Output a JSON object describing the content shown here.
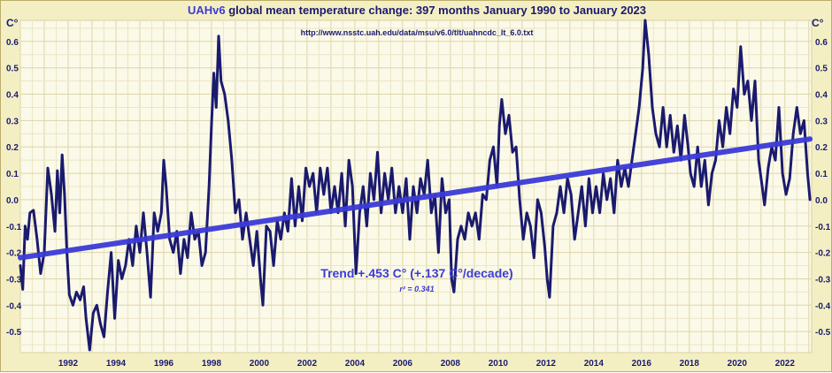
{
  "chart_data": {
    "type": "line",
    "title_prefix": "UAHv6",
    "title_rest": "global mean temperature change: 397 months January 1990 to January 2023",
    "subtitle": "http://www.nsstc.uah.edu/data/msu/v6.0/tlt/uahncdc_lt_6.0.txt",
    "y_unit": "C°",
    "ylim": [
      -0.58,
      0.68
    ],
    "xlim": [
      1990.0,
      2023.12
    ],
    "y_ticks": [
      "-0.5",
      "-0.4",
      "-0.3",
      "-0.2",
      "-0.1",
      "0.0",
      "0.1",
      "0.2",
      "0.3",
      "0.4",
      "0.5",
      "0.6"
    ],
    "x_ticks": [
      "1992",
      "1994",
      "1996",
      "1998",
      "2000",
      "2002",
      "2004",
      "2006",
      "2008",
      "2010",
      "2012",
      "2014",
      "2016",
      "2018",
      "2020",
      "2022"
    ],
    "grid": true,
    "series": [
      {
        "values": [
          [
            1990.0,
            -0.25
          ],
          [
            1990.1,
            -0.34
          ],
          [
            1990.2,
            -0.1
          ],
          [
            1990.3,
            -0.15
          ],
          [
            1990.4,
            -0.05
          ],
          [
            1990.55,
            -0.04
          ],
          [
            1990.7,
            -0.15
          ],
          [
            1990.85,
            -0.28
          ],
          [
            1991.0,
            -0.2
          ],
          [
            1991.15,
            0.12
          ],
          [
            1991.3,
            0.02
          ],
          [
            1991.45,
            -0.12
          ],
          [
            1991.55,
            0.11
          ],
          [
            1991.65,
            -0.05
          ],
          [
            1991.75,
            0.17
          ],
          [
            1991.85,
            0.02
          ],
          [
            1991.95,
            -0.2
          ],
          [
            1992.05,
            -0.36
          ],
          [
            1992.2,
            -0.4
          ],
          [
            1992.35,
            -0.35
          ],
          [
            1992.5,
            -0.38
          ],
          [
            1992.65,
            -0.33
          ],
          [
            1992.75,
            -0.45
          ],
          [
            1992.9,
            -0.57
          ],
          [
            1993.05,
            -0.43
          ],
          [
            1993.2,
            -0.4
          ],
          [
            1993.35,
            -0.47
          ],
          [
            1993.5,
            -0.52
          ],
          [
            1993.65,
            -0.35
          ],
          [
            1993.8,
            -0.2
          ],
          [
            1993.95,
            -0.45
          ],
          [
            1994.1,
            -0.23
          ],
          [
            1994.25,
            -0.3
          ],
          [
            1994.4,
            -0.25
          ],
          [
            1994.55,
            -0.15
          ],
          [
            1994.7,
            -0.25
          ],
          [
            1994.85,
            -0.1
          ],
          [
            1995.0,
            -0.2
          ],
          [
            1995.15,
            -0.05
          ],
          [
            1995.3,
            -0.2
          ],
          [
            1995.45,
            -0.37
          ],
          [
            1995.6,
            -0.05
          ],
          [
            1995.75,
            -0.12
          ],
          [
            1995.9,
            -0.05
          ],
          [
            1996.0,
            0.15
          ],
          [
            1996.1,
            0.05
          ],
          [
            1996.25,
            -0.15
          ],
          [
            1996.4,
            -0.2
          ],
          [
            1996.55,
            -0.12
          ],
          [
            1996.7,
            -0.28
          ],
          [
            1996.85,
            -0.15
          ],
          [
            1997.0,
            -0.22
          ],
          [
            1997.15,
            -0.05
          ],
          [
            1997.3,
            -0.15
          ],
          [
            1997.45,
            -0.12
          ],
          [
            1997.6,
            -0.25
          ],
          [
            1997.75,
            -0.2
          ],
          [
            1997.9,
            0.05
          ],
          [
            1998.0,
            0.28
          ],
          [
            1998.1,
            0.48
          ],
          [
            1998.2,
            0.35
          ],
          [
            1998.3,
            0.62
          ],
          [
            1998.4,
            0.45
          ],
          [
            1998.55,
            0.4
          ],
          [
            1998.7,
            0.3
          ],
          [
            1998.85,
            0.15
          ],
          [
            1999.0,
            -0.05
          ],
          [
            1999.15,
            0.0
          ],
          [
            1999.3,
            -0.15
          ],
          [
            1999.45,
            -0.05
          ],
          [
            1999.6,
            -0.15
          ],
          [
            1999.75,
            -0.25
          ],
          [
            1999.9,
            -0.12
          ],
          [
            2000.05,
            -0.3
          ],
          [
            2000.15,
            -0.4
          ],
          [
            2000.3,
            -0.1
          ],
          [
            2000.45,
            -0.12
          ],
          [
            2000.6,
            -0.25
          ],
          [
            2000.75,
            -0.08
          ],
          [
            2000.9,
            -0.15
          ],
          [
            2001.05,
            -0.05
          ],
          [
            2001.2,
            -0.12
          ],
          [
            2001.35,
            0.08
          ],
          [
            2001.5,
            -0.1
          ],
          [
            2001.65,
            0.05
          ],
          [
            2001.8,
            -0.08
          ],
          [
            2001.95,
            0.12
          ],
          [
            2002.1,
            0.05
          ],
          [
            2002.25,
            0.1
          ],
          [
            2002.4,
            -0.05
          ],
          [
            2002.55,
            0.12
          ],
          [
            2002.7,
            0.02
          ],
          [
            2002.85,
            0.12
          ],
          [
            2003.0,
            -0.05
          ],
          [
            2003.15,
            0.05
          ],
          [
            2003.3,
            -0.05
          ],
          [
            2003.45,
            0.1
          ],
          [
            2003.6,
            -0.1
          ],
          [
            2003.75,
            0.15
          ],
          [
            2003.9,
            0.05
          ],
          [
            2004.05,
            -0.28
          ],
          [
            2004.2,
            -0.05
          ],
          [
            2004.35,
            0.05
          ],
          [
            2004.5,
            -0.1
          ],
          [
            2004.65,
            0.1
          ],
          [
            2004.8,
            0.0
          ],
          [
            2004.95,
            0.18
          ],
          [
            2005.1,
            -0.05
          ],
          [
            2005.25,
            0.1
          ],
          [
            2005.4,
            0.0
          ],
          [
            2005.55,
            0.12
          ],
          [
            2005.7,
            -0.05
          ],
          [
            2005.85,
            0.05
          ],
          [
            2006.0,
            -0.05
          ],
          [
            2006.15,
            0.08
          ],
          [
            2006.3,
            -0.15
          ],
          [
            2006.45,
            0.05
          ],
          [
            2006.6,
            -0.05
          ],
          [
            2006.75,
            0.08
          ],
          [
            2006.9,
            0.02
          ],
          [
            2007.05,
            0.15
          ],
          [
            2007.2,
            -0.05
          ],
          [
            2007.35,
            0.02
          ],
          [
            2007.5,
            -0.2
          ],
          [
            2007.65,
            0.08
          ],
          [
            2007.8,
            -0.05
          ],
          [
            2007.95,
            0.0
          ],
          [
            2008.05,
            -0.3
          ],
          [
            2008.15,
            -0.35
          ],
          [
            2008.3,
            -0.15
          ],
          [
            2008.45,
            -0.1
          ],
          [
            2008.6,
            -0.15
          ],
          [
            2008.75,
            -0.05
          ],
          [
            2008.9,
            -0.1
          ],
          [
            2009.05,
            -0.05
          ],
          [
            2009.2,
            -0.15
          ],
          [
            2009.35,
            0.02
          ],
          [
            2009.5,
            0.0
          ],
          [
            2009.65,
            0.15
          ],
          [
            2009.8,
            0.2
          ],
          [
            2009.95,
            0.05
          ],
          [
            2010.05,
            0.28
          ],
          [
            2010.15,
            0.38
          ],
          [
            2010.3,
            0.25
          ],
          [
            2010.45,
            0.32
          ],
          [
            2010.6,
            0.18
          ],
          [
            2010.75,
            0.2
          ],
          [
            2010.9,
            0.0
          ],
          [
            2011.05,
            -0.15
          ],
          [
            2011.2,
            -0.05
          ],
          [
            2011.35,
            -0.1
          ],
          [
            2011.5,
            -0.22
          ],
          [
            2011.65,
            0.0
          ],
          [
            2011.8,
            -0.05
          ],
          [
            2011.95,
            -0.18
          ],
          [
            2012.05,
            -0.3
          ],
          [
            2012.15,
            -0.37
          ],
          [
            2012.3,
            -0.1
          ],
          [
            2012.45,
            -0.05
          ],
          [
            2012.6,
            0.05
          ],
          [
            2012.75,
            -0.05
          ],
          [
            2012.9,
            0.08
          ],
          [
            2013.05,
            0.02
          ],
          [
            2013.2,
            -0.15
          ],
          [
            2013.35,
            -0.05
          ],
          [
            2013.5,
            0.05
          ],
          [
            2013.65,
            -0.1
          ],
          [
            2013.8,
            0.08
          ],
          [
            2013.95,
            -0.05
          ],
          [
            2014.1,
            0.05
          ],
          [
            2014.25,
            -0.05
          ],
          [
            2014.4,
            0.1
          ],
          [
            2014.55,
            0.0
          ],
          [
            2014.7,
            0.08
          ],
          [
            2014.85,
            -0.05
          ],
          [
            2015.0,
            0.15
          ],
          [
            2015.15,
            0.05
          ],
          [
            2015.3,
            0.12
          ],
          [
            2015.45,
            0.05
          ],
          [
            2015.6,
            0.15
          ],
          [
            2015.75,
            0.25
          ],
          [
            2015.9,
            0.35
          ],
          [
            2016.05,
            0.5
          ],
          [
            2016.15,
            0.68
          ],
          [
            2016.3,
            0.55
          ],
          [
            2016.45,
            0.35
          ],
          [
            2016.6,
            0.25
          ],
          [
            2016.75,
            0.2
          ],
          [
            2016.9,
            0.35
          ],
          [
            2017.05,
            0.2
          ],
          [
            2017.2,
            0.32
          ],
          [
            2017.35,
            0.18
          ],
          [
            2017.5,
            0.28
          ],
          [
            2017.65,
            0.15
          ],
          [
            2017.8,
            0.32
          ],
          [
            2017.95,
            0.2
          ],
          [
            2018.05,
            0.1
          ],
          [
            2018.2,
            0.05
          ],
          [
            2018.35,
            0.2
          ],
          [
            2018.5,
            0.05
          ],
          [
            2018.65,
            0.15
          ],
          [
            2018.8,
            -0.02
          ],
          [
            2018.95,
            0.1
          ],
          [
            2019.1,
            0.15
          ],
          [
            2019.25,
            0.3
          ],
          [
            2019.4,
            0.2
          ],
          [
            2019.55,
            0.35
          ],
          [
            2019.7,
            0.25
          ],
          [
            2019.85,
            0.42
          ],
          [
            2020.0,
            0.35
          ],
          [
            2020.15,
            0.58
          ],
          [
            2020.3,
            0.4
          ],
          [
            2020.45,
            0.45
          ],
          [
            2020.6,
            0.3
          ],
          [
            2020.75,
            0.45
          ],
          [
            2020.9,
            0.15
          ],
          [
            2021.05,
            0.05
          ],
          [
            2021.15,
            -0.02
          ],
          [
            2021.3,
            0.12
          ],
          [
            2021.45,
            0.2
          ],
          [
            2021.6,
            0.15
          ],
          [
            2021.75,
            0.35
          ],
          [
            2021.9,
            0.1
          ],
          [
            2022.05,
            0.02
          ],
          [
            2022.2,
            0.08
          ],
          [
            2022.35,
            0.25
          ],
          [
            2022.5,
            0.35
          ],
          [
            2022.65,
            0.25
          ],
          [
            2022.8,
            0.3
          ],
          [
            2022.95,
            0.1
          ],
          [
            2023.05,
            0.0
          ]
        ],
        "color": "#1a1a6e"
      },
      {
        "name": "Trend +.453 C° (+.137 C°/decade)",
        "type": "linear-trend",
        "x": [
          1990.0,
          2023.05
        ],
        "values": [
          -0.22,
          0.23
        ],
        "color": "#3b3bd8"
      }
    ],
    "annotations": {
      "trend_label": "Trend +.453 C° (+.137 C°/decade)",
      "r2_label": "r² = 0.341"
    }
  }
}
